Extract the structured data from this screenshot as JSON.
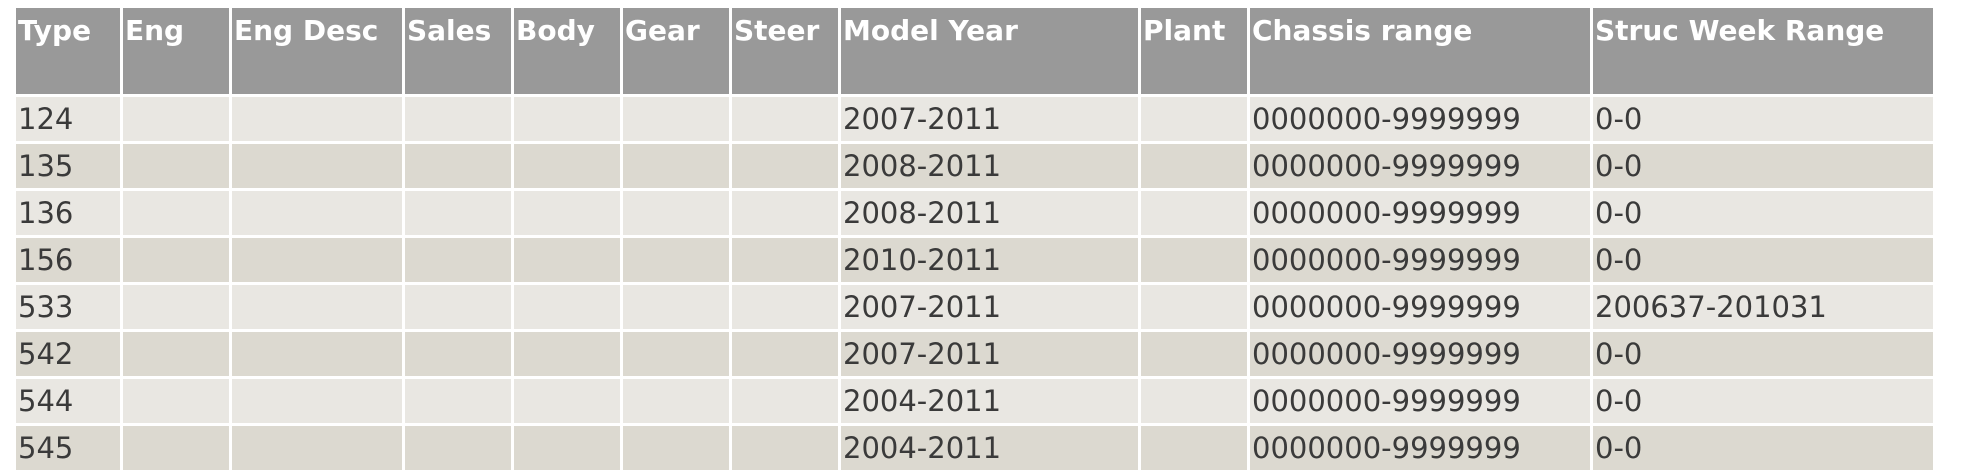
{
  "table": {
    "header": [
      "Type",
      "Eng",
      "Eng Desc",
      "Sales",
      "Body",
      "Gear",
      "Steer",
      "Model Year",
      "Plant",
      "Chassis range",
      "Struc Week Range"
    ],
    "rows": [
      [
        "124",
        null,
        null,
        null,
        null,
        null,
        null,
        "2007-2011",
        null,
        "0000000-9999999",
        "0-0"
      ],
      [
        "135",
        null,
        null,
        null,
        null,
        null,
        null,
        "2008-2011",
        null,
        "0000000-9999999",
        "0-0"
      ],
      [
        "136",
        null,
        null,
        null,
        null,
        null,
        null,
        "2008-2011",
        null,
        "0000000-9999999",
        "0-0"
      ],
      [
        "156",
        null,
        null,
        null,
        null,
        null,
        null,
        "2010-2011",
        null,
        "0000000-9999999",
        "0-0"
      ],
      [
        "533",
        null,
        null,
        null,
        null,
        null,
        null,
        "2007-2011",
        null,
        "0000000-9999999",
        "200637-201031"
      ],
      [
        "542",
        null,
        null,
        null,
        null,
        null,
        null,
        "2007-2011",
        null,
        "0000000-9999999",
        "0-0"
      ],
      [
        "544",
        null,
        null,
        null,
        null,
        null,
        null,
        "2004-2011",
        null,
        "0000000-9999999",
        "0-0"
      ],
      [
        "545",
        null,
        null,
        null,
        null,
        null,
        null,
        "2004-2011",
        null,
        "0000000-9999999",
        "0-0"
      ]
    ]
  }
}
